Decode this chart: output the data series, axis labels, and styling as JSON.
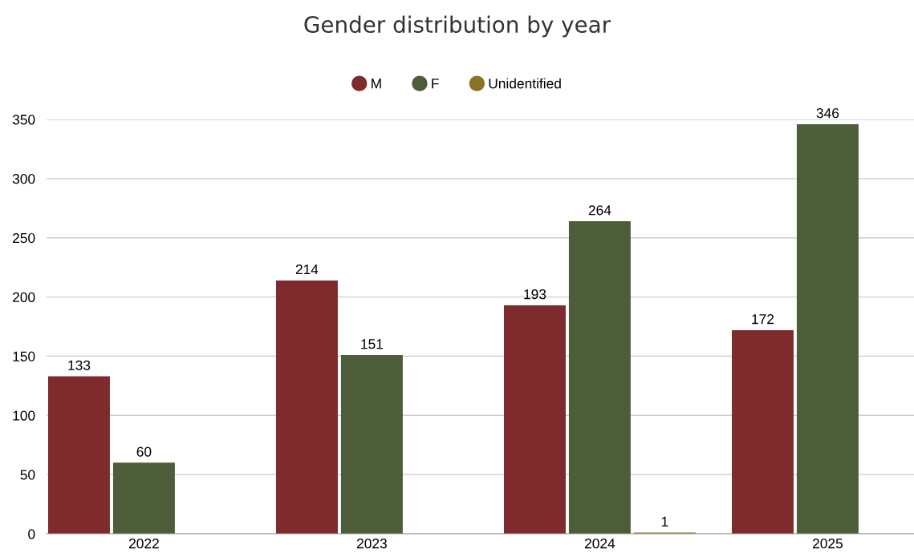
{
  "chart_data": {
    "type": "bar",
    "title": "Gender distribution by year",
    "categories": [
      "2022",
      "2023",
      "2024",
      "2025"
    ],
    "series": [
      {
        "name": "M",
        "color": "#7f2a2d",
        "values": [
          133,
          214,
          193,
          172
        ]
      },
      {
        "name": "F",
        "color": "#4d5d39",
        "values": [
          60,
          151,
          264,
          346
        ]
      },
      {
        "name": "Unidentified",
        "color": "#8b7325",
        "values": [
          null,
          null,
          1,
          null
        ]
      }
    ],
    "ylim": [
      0,
      350
    ],
    "yticks": [
      0,
      50,
      100,
      150,
      200,
      250,
      300,
      350
    ],
    "grid": "y",
    "legend": "top",
    "data_labels": true
  }
}
